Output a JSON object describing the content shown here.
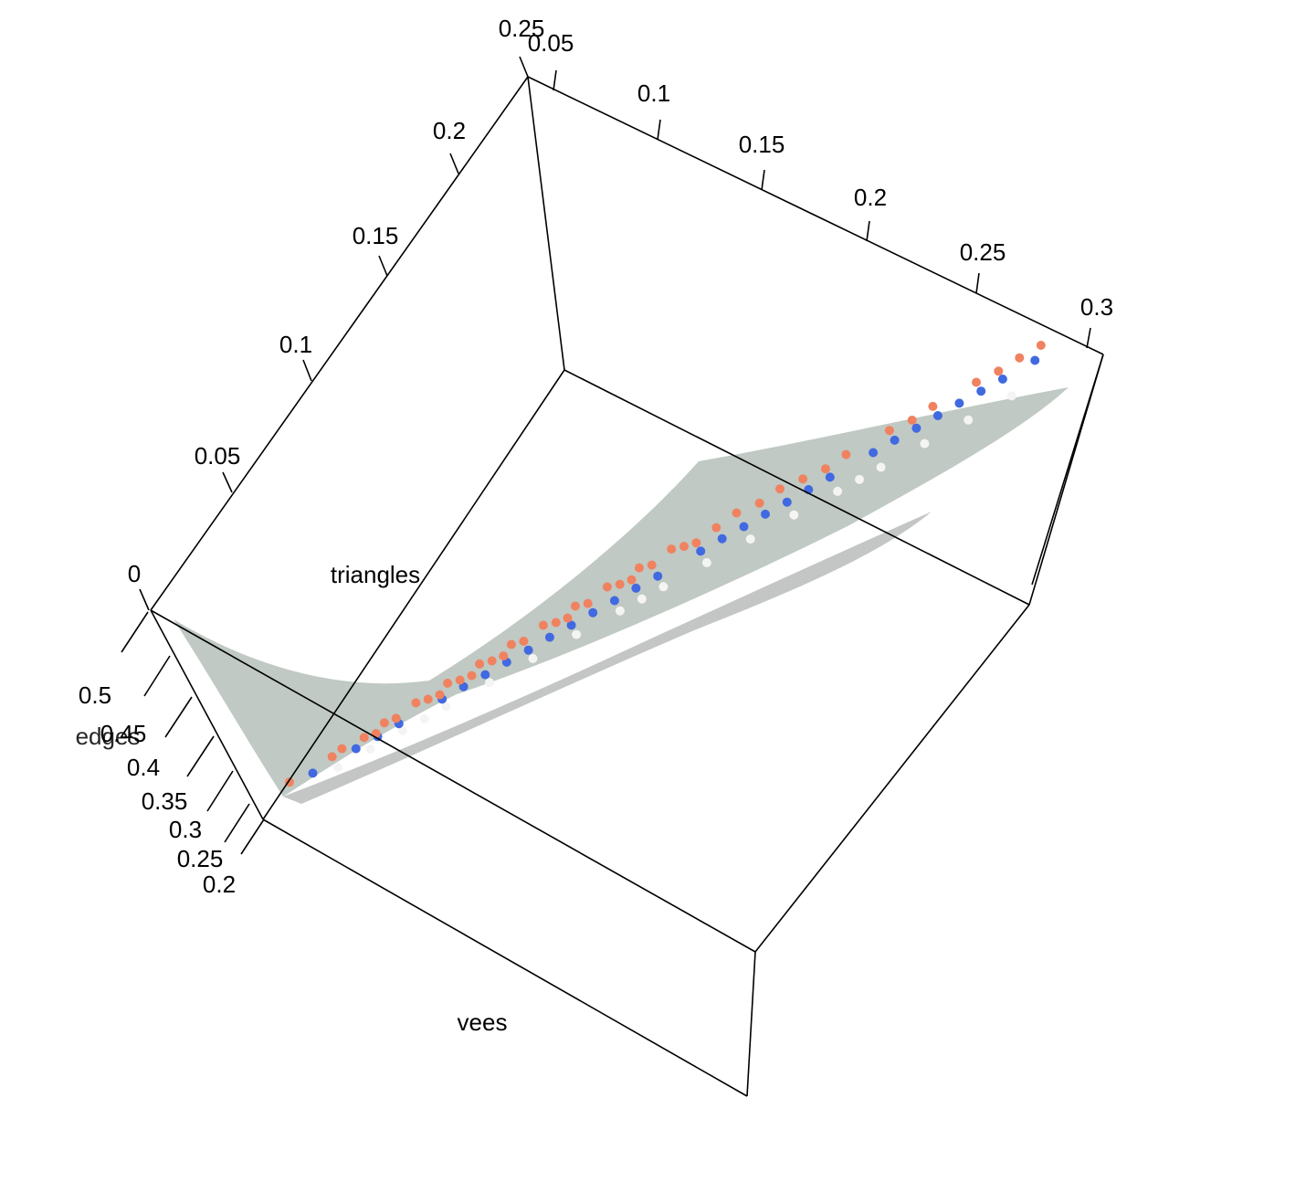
{
  "chart_data": {
    "type": "scatter",
    "axes": {
      "triangles": {
        "label": "triangles",
        "ticks": [
          "0",
          "0.05",
          "0.1",
          "0.15",
          "0.2",
          "0.25"
        ]
      },
      "back_axis": {
        "label": "",
        "ticks": [
          "0.05",
          "0.1",
          "0.15",
          "0.2",
          "0.25",
          "0.3"
        ]
      },
      "vertical": {
        "label": "edges",
        "ticks": [
          "0.5",
          "0.45",
          "0.4",
          "0.35",
          "0.3",
          "0.25",
          "0.2"
        ]
      },
      "vees": {
        "label": "vees"
      }
    },
    "surface": {
      "color": "#b5bfb8",
      "opacity": 0.85
    },
    "series": [
      {
        "color": "#f4f4f4"
      },
      {
        "color": "#4169e1"
      },
      {
        "color": "#f08260"
      }
    ],
    "points": [
      [
        0.32,
        0.23,
        0
      ],
      [
        0.35,
        0.25,
        0
      ],
      [
        0.38,
        0.27,
        0
      ],
      [
        0.42,
        0.29,
        0
      ],
      [
        0.46,
        0.31,
        0
      ],
      [
        0.5,
        0.33,
        0
      ],
      [
        0.54,
        0.35,
        0
      ],
      [
        0.58,
        0.36,
        0
      ],
      [
        0.62,
        0.38,
        0
      ],
      [
        0.66,
        0.4,
        0
      ],
      [
        0.7,
        0.41,
        0
      ],
      [
        0.74,
        0.43,
        0
      ],
      [
        0.78,
        0.44,
        0
      ],
      [
        0.82,
        0.46,
        0
      ],
      [
        0.86,
        0.47,
        0
      ],
      [
        0.9,
        0.48,
        0
      ],
      [
        0.94,
        0.5,
        0
      ],
      [
        0.4,
        0.275,
        0
      ],
      [
        0.6,
        0.365,
        0
      ],
      [
        0.8,
        0.445,
        0
      ],
      [
        0.3,
        0.36,
        1
      ],
      [
        0.34,
        0.39,
        1
      ],
      [
        0.38,
        0.43,
        1
      ],
      [
        0.42,
        0.46,
        1
      ],
      [
        0.46,
        0.49,
        1
      ],
      [
        0.5,
        0.52,
        1
      ],
      [
        0.54,
        0.56,
        1
      ],
      [
        0.58,
        0.59,
        1
      ],
      [
        0.62,
        0.62,
        1
      ],
      [
        0.66,
        0.66,
        1
      ],
      [
        0.7,
        0.69,
        1
      ],
      [
        0.74,
        0.72,
        1
      ],
      [
        0.78,
        0.76,
        1
      ],
      [
        0.82,
        0.79,
        1
      ],
      [
        0.86,
        0.82,
        1
      ],
      [
        0.9,
        0.86,
        1
      ],
      [
        0.94,
        0.88,
        1
      ],
      [
        0.97,
        0.91,
        1
      ],
      [
        0.36,
        0.4,
        1
      ],
      [
        0.44,
        0.48,
        1
      ],
      [
        0.52,
        0.55,
        1
      ],
      [
        0.6,
        0.61,
        1
      ],
      [
        0.68,
        0.68,
        1
      ],
      [
        0.76,
        0.74,
        1
      ],
      [
        0.84,
        0.81,
        1
      ],
      [
        0.92,
        0.87,
        1
      ],
      [
        0.56,
        0.58,
        1
      ],
      [
        0.72,
        0.71,
        1
      ],
      [
        0.88,
        0.84,
        1
      ],
      [
        0.48,
        0.51,
        1
      ],
      [
        0.28,
        0.42,
        2
      ],
      [
        0.32,
        0.47,
        2
      ],
      [
        0.35,
        0.51,
        2
      ],
      [
        0.38,
        0.55,
        2
      ],
      [
        0.41,
        0.59,
        2
      ],
      [
        0.44,
        0.63,
        2
      ],
      [
        0.47,
        0.67,
        2
      ],
      [
        0.5,
        0.72,
        2
      ],
      [
        0.53,
        0.75,
        2
      ],
      [
        0.56,
        0.79,
        2
      ],
      [
        0.59,
        0.83,
        2
      ],
      [
        0.62,
        0.87,
        2
      ],
      [
        0.65,
        0.9,
        2
      ],
      [
        0.68,
        0.93,
        2
      ],
      [
        0.72,
        0.96,
        2
      ],
      [
        0.76,
        0.98,
        2
      ],
      [
        0.8,
        1.01,
        2
      ],
      [
        0.84,
        1.03,
        2
      ],
      [
        0.88,
        1.05,
        2
      ],
      [
        0.92,
        1.07,
        2
      ],
      [
        0.96,
        1.1,
        2
      ],
      [
        0.98,
        1.12,
        2
      ],
      [
        0.33,
        0.52,
        2
      ],
      [
        0.37,
        0.58,
        2
      ],
      [
        0.4,
        0.64,
        2
      ],
      [
        0.43,
        0.69,
        2
      ],
      [
        0.46,
        0.73,
        2
      ],
      [
        0.49,
        0.78,
        2
      ],
      [
        0.52,
        0.82,
        2
      ],
      [
        0.55,
        0.86,
        2
      ],
      [
        0.58,
        0.9,
        2
      ],
      [
        0.61,
        0.94,
        2
      ],
      [
        0.64,
        0.97,
        2
      ],
      [
        0.7,
        1.0,
        2
      ],
      [
        0.74,
        1.02,
        2
      ],
      [
        0.36,
        0.47,
        2
      ],
      [
        0.42,
        0.56,
        2
      ],
      [
        0.48,
        0.65,
        2
      ],
      [
        0.54,
        0.72,
        2
      ],
      [
        0.6,
        0.8,
        2
      ],
      [
        0.66,
        0.85,
        2
      ],
      [
        0.78,
        0.95,
        2
      ],
      [
        0.86,
        1.0,
        2
      ],
      [
        0.94,
        1.06,
        2
      ],
      [
        0.45,
        0.6,
        2
      ]
    ]
  }
}
